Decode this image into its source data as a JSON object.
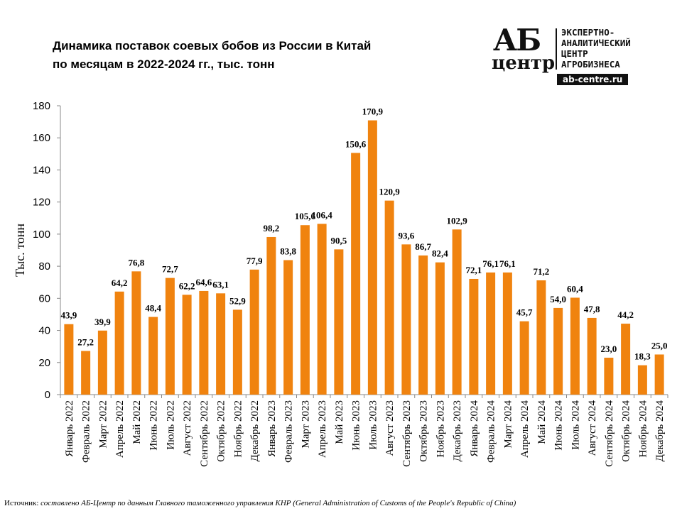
{
  "title_lines": [
    "Динамика поставок соевых бобов из России в Китай",
    "по месяцам в 2022-2024 гг., тыс. тонн"
  ],
  "logo": {
    "big": "АБ",
    "small": "центр",
    "text_lines": [
      "ЭКСПЕРТНО-",
      "АНАЛИТИЧЕСКИЙ",
      "ЦЕНТР",
      "АГРОБИЗНЕСА"
    ],
    "url": "ab-centre.ru"
  },
  "source": {
    "label": "Источник:",
    "text": "составлено АБ-Центр по данным Главного таможенного управления КНР (General Administration of Customs of the People's Republic  of China)"
  },
  "chart_data": {
    "type": "bar",
    "ylabel": "Тыс. тонн",
    "ylim": [
      0,
      180
    ],
    "yticks": [
      0,
      20,
      40,
      60,
      80,
      100,
      120,
      140,
      160,
      180
    ],
    "grid": false,
    "bar_color": "#F0830F",
    "categories": [
      "Январь 2022",
      "Февраль 2022",
      "Март 2022",
      "Апрель 2022",
      "Май 2022",
      "Июнь 2022",
      "Июль 2022",
      "Август 2022",
      "Сентябрь 2022",
      "Октябрь 2022",
      "Ноябрь 2022",
      "Декабрь 2022",
      "Январь 2023",
      "Февраль 2023",
      "Март 2023",
      "Апрель 2023",
      "Май 2023",
      "Июнь 2023",
      "Июль 2023",
      "Август 2023",
      "Сентябрь 2023",
      "Октябрь 2023",
      "Ноябрь 2023",
      "Декабрь 2023",
      "Январь 2024",
      "Февраль 2024",
      "Март 2024",
      "Апрель 2024",
      "Май 2024",
      "Июнь 2024",
      "Июль 2024",
      "Август 2024",
      "Сентябрь 2024",
      "Октябрь 2024",
      "Ноябрь 2024",
      "Декабрь 2024"
    ],
    "values": [
      43.9,
      27.2,
      39.9,
      64.2,
      76.8,
      48.4,
      72.7,
      62.2,
      64.6,
      63.1,
      52.9,
      77.9,
      98.2,
      83.8,
      105.6,
      106.4,
      90.5,
      150.6,
      170.9,
      120.9,
      93.6,
      86.7,
      82.4,
      102.9,
      72.1,
      76.1,
      76.1,
      45.7,
      71.2,
      54.0,
      60.4,
      47.8,
      23.0,
      44.2,
      18.3,
      25.0
    ],
    "data_labels": [
      "43,9",
      "27,2",
      "39,9",
      "64,2",
      "76,8",
      "48,4",
      "72,7",
      "62,2",
      "64,6",
      "63,1",
      "52,9",
      "77,9",
      "98,2",
      "83,8",
      "105,6",
      "106,4",
      "90,5",
      "150,6",
      "170,9",
      "120,9",
      "93,6",
      "86,7",
      "82,4",
      "102,9",
      "72,1",
      "76,1",
      "76,1",
      "45,7",
      "71,2",
      "54,0",
      "60,4",
      "47,8",
      "23,0",
      "44,2",
      "18,3",
      "25,0"
    ]
  }
}
